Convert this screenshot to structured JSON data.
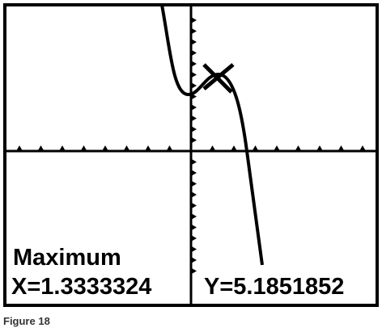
{
  "screen": {
    "label": "Maximum",
    "x_readout": "X=1.3333324",
    "y_readout": "Y=5.1851852"
  },
  "caption": "Figure 18"
}
